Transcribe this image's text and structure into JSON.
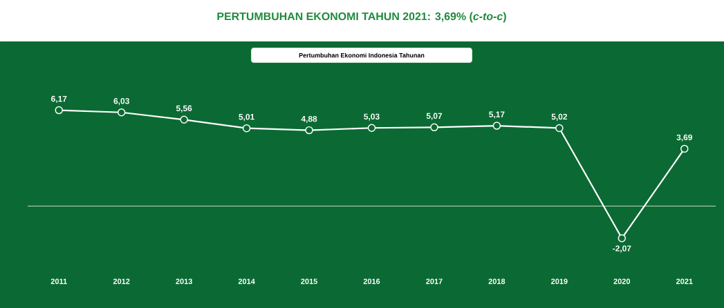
{
  "chart_data": {
    "type": "line",
    "title": "PERTUMBUHAN EKONOMI TAHUN 2021: 3,69% (*c-to-c*)",
    "subtitle": "Pertumbuhan Ekonomi Indonesia Tahunan",
    "categories": [
      "2011",
      "2012",
      "2013",
      "2014",
      "2015",
      "2016",
      "2017",
      "2018",
      "2019",
      "2020",
      "2021"
    ],
    "values": [
      6.17,
      6.03,
      5.56,
      5.01,
      4.88,
      5.03,
      5.07,
      5.17,
      5.02,
      -2.07,
      3.69
    ],
    "value_labels": [
      "6,17",
      "6,03",
      "5,56",
      "5,01",
      "4,88",
      "5,03",
      "5,07",
      "5,17",
      "5,02",
      "-2,07",
      "3,69"
    ],
    "color": "#ffffff",
    "marker": "circle"
  }
}
